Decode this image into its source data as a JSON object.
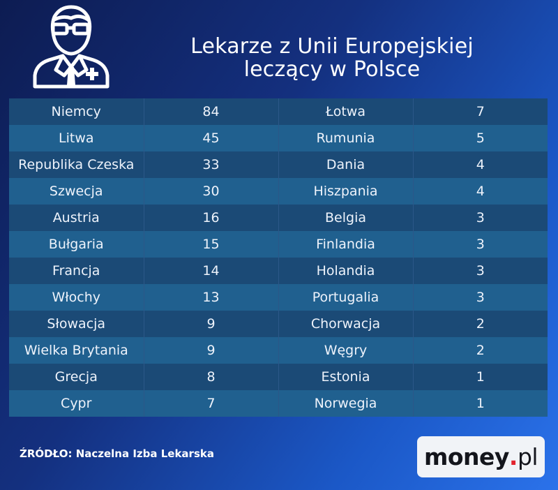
{
  "title": {
    "line1": "Lekarze z Unii Europejskiej",
    "line2": "leczący w Polsce"
  },
  "icons": {
    "header": "doctor-icon"
  },
  "colors": {
    "row_dark": "#1b4a76",
    "row_light": "#20608f",
    "background_start": "#0d1c52",
    "background_end": "#2b72ea",
    "logo_accent": "#e3232d"
  },
  "chart_data": {
    "type": "table",
    "title": "Lekarze z Unii Europejskiej leczący w Polsce",
    "rows": [
      {
        "left_country": "Niemcy",
        "left_value": "84",
        "right_country": "Łotwa",
        "right_value": "7"
      },
      {
        "left_country": "Litwa",
        "left_value": "45",
        "right_country": "Rumunia",
        "right_value": "5"
      },
      {
        "left_country": "Republika Czeska",
        "left_value": "33",
        "right_country": "Dania",
        "right_value": "4"
      },
      {
        "left_country": "Szwecja",
        "left_value": "30",
        "right_country": "Hiszpania",
        "right_value": "4"
      },
      {
        "left_country": "Austria",
        "left_value": "16",
        "right_country": "Belgia",
        "right_value": "3"
      },
      {
        "left_country": "Bułgaria",
        "left_value": "15",
        "right_country": "Finlandia",
        "right_value": "3"
      },
      {
        "left_country": "Francja",
        "left_value": "14",
        "right_country": "Holandia",
        "right_value": "3"
      },
      {
        "left_country": "Włochy",
        "left_value": "13",
        "right_country": "Portugalia",
        "right_value": "3"
      },
      {
        "left_country": "Słowacja",
        "left_value": "9",
        "right_country": "Chorwacja",
        "right_value": "2"
      },
      {
        "left_country": "Wielka Brytania",
        "left_value": "9",
        "right_country": "Węgry",
        "right_value": "2"
      },
      {
        "left_country": "Grecja",
        "left_value": "8",
        "right_country": "Estonia",
        "right_value": "1"
      },
      {
        "left_country": "Cypr",
        "left_value": "7",
        "right_country": "Norwegia",
        "right_value": "1"
      }
    ]
  },
  "footer": {
    "source": "ŹRÓDŁO: Naczelna Izba Lekarska",
    "logo_main": "money",
    "logo_dot": ".",
    "logo_suffix": "pl"
  }
}
